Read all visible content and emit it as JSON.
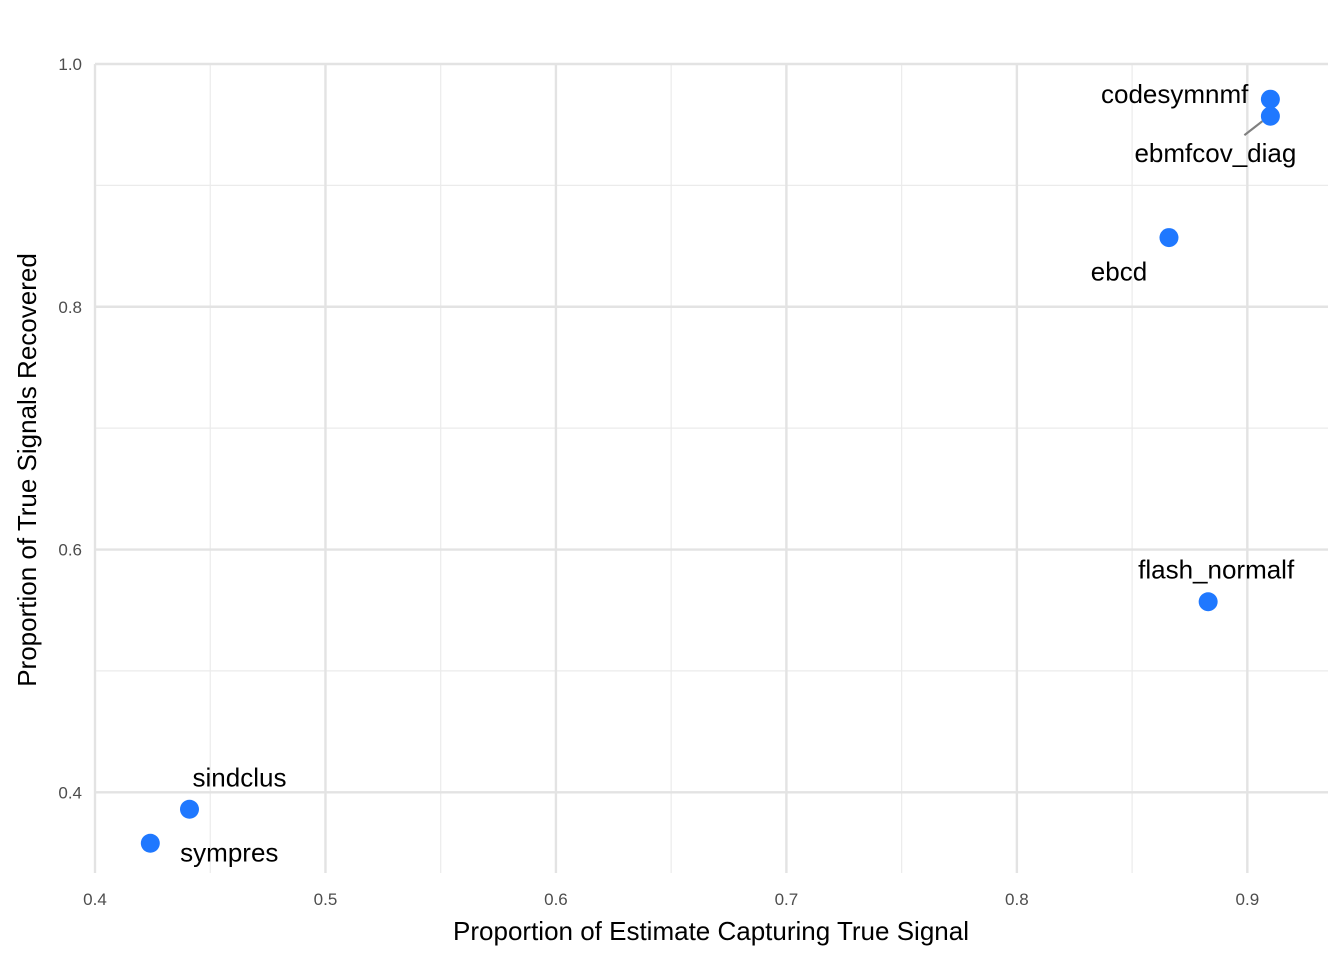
{
  "chart_data": {
    "type": "scatter",
    "title": "",
    "xlabel": "Proportion of Estimate Capturing True Signal",
    "ylabel": "Proportion of True Signals Recovered",
    "xlim": [
      0.4,
      0.935
    ],
    "ylim": [
      0.3335,
      1.0
    ],
    "x_ticks": [
      0.4,
      0.5,
      0.6,
      0.7,
      0.8,
      0.9
    ],
    "x_tick_labels": [
      "0.4",
      "0.5",
      "0.6",
      "0.7",
      "0.8",
      "0.9"
    ],
    "y_ticks": [
      0.4,
      0.6,
      0.8,
      1.0
    ],
    "y_tick_labels": [
      "0.4",
      "0.6",
      "0.8",
      "1.0"
    ],
    "grid": true,
    "point_color": "#1F78FF",
    "points": [
      {
        "label": "codesymnmf",
        "x": 0.91,
        "y": 0.971
      },
      {
        "label": "ebmfcov_diag",
        "x": 0.91,
        "y": 0.957
      },
      {
        "label": "ebcd",
        "x": 0.866,
        "y": 0.857
      },
      {
        "label": "flash_normalf",
        "x": 0.883,
        "y": 0.557
      },
      {
        "label": "sindclus",
        "x": 0.441,
        "y": 0.386
      },
      {
        "label": "sympres",
        "x": 0.424,
        "y": 0.358
      }
    ]
  }
}
